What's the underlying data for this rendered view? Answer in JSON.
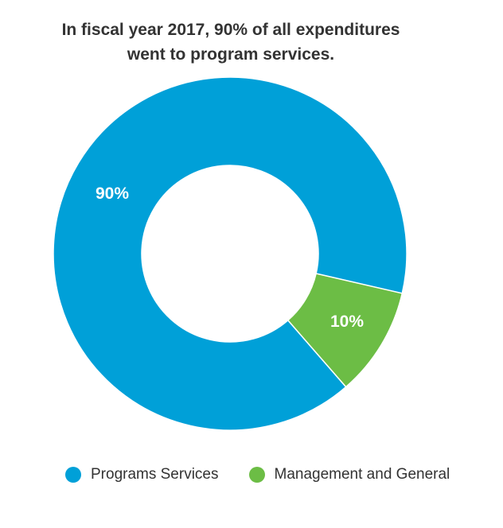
{
  "chart_data": {
    "type": "pie",
    "donut": true,
    "title_lines": [
      "In fiscal year 2017, 90% of all expenditures",
      "went to program services."
    ],
    "slices": [
      {
        "name": "Programs Services",
        "value": 90,
        "label": "90%",
        "color": "#00a0d8"
      },
      {
        "name": "Management and General",
        "value": 10,
        "label": "10%",
        "color": "#6cbd45"
      }
    ],
    "legend_position": "bottom"
  }
}
